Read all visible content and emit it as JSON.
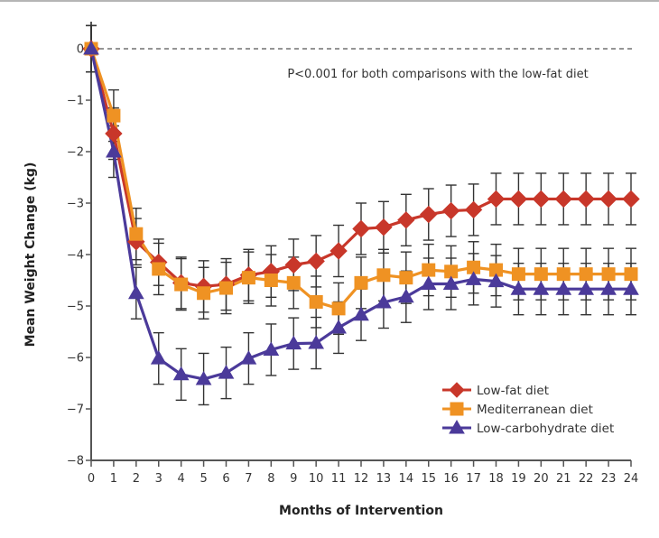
{
  "chart_data": {
    "type": "line",
    "title": "",
    "xlabel": "Months of Intervention",
    "ylabel": "Mean Weight Change (kg)",
    "xlim": [
      0,
      24
    ],
    "ylim": [
      -8,
      0
    ],
    "x": [
      0,
      1,
      2,
      3,
      4,
      5,
      6,
      7,
      8,
      9,
      10,
      11,
      12,
      13,
      14,
      15,
      16,
      17,
      18,
      19,
      20,
      21,
      22,
      23,
      24
    ],
    "x_ticks": [
      "0",
      "1",
      "2",
      "3",
      "4",
      "5",
      "6",
      "7",
      "8",
      "9",
      "10",
      "11",
      "12",
      "13",
      "14",
      "15",
      "16",
      "17",
      "18",
      "19",
      "20",
      "21",
      "22",
      "23",
      "24"
    ],
    "y_ticks": [
      0,
      -1,
      -2,
      -3,
      -4,
      -5,
      -6,
      -7,
      -8
    ],
    "y_tick_labels": [
      "0",
      "−1",
      "−2",
      "−3",
      "−4",
      "−5",
      "−6",
      "−7",
      "−8"
    ],
    "reference_line": {
      "y": 0,
      "style": "dashed"
    },
    "annotation": "P<0.001 for both comparisons with the low-fat diet",
    "legend_position": "lower-right",
    "grid": false,
    "series": [
      {
        "name": "Low-fat diet",
        "marker": "diamond",
        "color": "#c8372a",
        "values": [
          0,
          -1.65,
          -3.75,
          -4.15,
          -4.55,
          -4.62,
          -4.58,
          -4.4,
          -4.33,
          -4.2,
          -4.13,
          -3.93,
          -3.5,
          -3.47,
          -3.33,
          -3.22,
          -3.15,
          -3.13,
          -2.92,
          -2.92,
          -2.92,
          -2.92,
          -2.92,
          -2.92,
          -2.92
        ],
        "error": [
          0.45,
          0.5,
          0.45,
          0.45,
          0.5,
          0.5,
          0.5,
          0.5,
          0.5,
          0.5,
          0.5,
          0.5,
          0.5,
          0.5,
          0.5,
          0.5,
          0.5,
          0.5,
          0.5,
          0.5,
          0.5,
          0.5,
          0.5,
          0.5,
          0.5
        ]
      },
      {
        "name": "Mediterranean diet",
        "marker": "square",
        "color": "#ef9223",
        "values": [
          0,
          -1.3,
          -3.6,
          -4.28,
          -4.58,
          -4.75,
          -4.65,
          -4.45,
          -4.5,
          -4.55,
          -4.92,
          -5.05,
          -4.55,
          -4.4,
          -4.45,
          -4.3,
          -4.33,
          -4.25,
          -4.3,
          -4.38,
          -4.38,
          -4.38,
          -4.38,
          -4.38,
          -4.38
        ],
        "error": [
          0.45,
          0.5,
          0.5,
          0.5,
          0.5,
          0.5,
          0.5,
          0.5,
          0.5,
          0.5,
          0.5,
          0.5,
          0.5,
          0.5,
          0.5,
          0.5,
          0.5,
          0.5,
          0.5,
          0.5,
          0.5,
          0.5,
          0.5,
          0.5,
          0.5
        ]
      },
      {
        "name": "Low-carbohydrate diet",
        "marker": "triangle",
        "color": "#4b3a9a",
        "values": [
          0,
          -2.0,
          -4.75,
          -6.02,
          -6.33,
          -6.42,
          -6.3,
          -6.02,
          -5.85,
          -5.73,
          -5.72,
          -5.42,
          -5.17,
          -4.93,
          -4.82,
          -4.57,
          -4.57,
          -4.48,
          -4.52,
          -4.67,
          -4.67,
          -4.67,
          -4.67,
          -4.67,
          -4.67
        ],
        "error": [
          0.45,
          0.5,
          0.5,
          0.5,
          0.5,
          0.5,
          0.5,
          0.5,
          0.5,
          0.5,
          0.5,
          0.5,
          0.5,
          0.5,
          0.5,
          0.5,
          0.5,
          0.5,
          0.5,
          0.5,
          0.5,
          0.5,
          0.5,
          0.5,
          0.5
        ]
      }
    ]
  }
}
